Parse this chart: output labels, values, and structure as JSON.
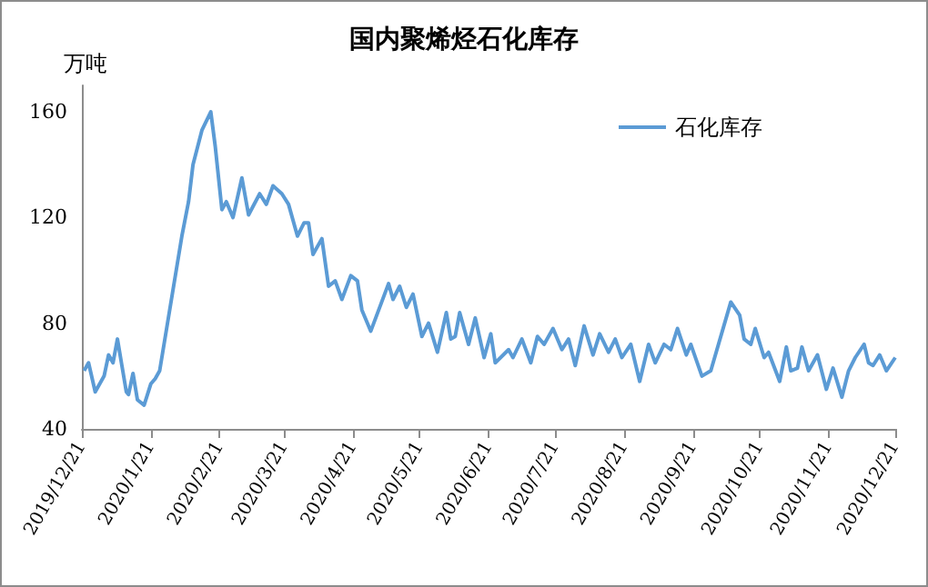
{
  "chart_data": {
    "type": "line",
    "title": "国内聚烯烃石化库存",
    "ylabel": "万吨",
    "x": [
      "2019-12-22",
      "2019-12-24",
      "2019-12-27",
      "2019-12-31",
      "2020-01-02",
      "2020-01-04",
      "2020-01-06",
      "2020-01-08",
      "2020-01-10",
      "2020-01-11",
      "2020-01-13",
      "2020-01-15",
      "2020-01-18",
      "2020-01-21",
      "2020-01-23",
      "2020-01-25",
      "2020-02-04",
      "2020-02-07",
      "2020-02-09",
      "2020-02-13",
      "2020-02-17",
      "2020-02-19",
      "2020-02-22",
      "2020-02-24",
      "2020-02-27",
      "2020-03-02",
      "2020-03-05",
      "2020-03-10",
      "2020-03-13",
      "2020-03-16",
      "2020-03-20",
      "2020-03-23",
      "2020-03-27",
      "2020-03-30",
      "2020-04-01",
      "2020-04-03",
      "2020-04-07",
      "2020-04-10",
      "2020-04-13",
      "2020-04-16",
      "2020-04-20",
      "2020-04-23",
      "2020-04-25",
      "2020-04-29",
      "2020-05-07",
      "2020-05-09",
      "2020-05-12",
      "2020-05-15",
      "2020-05-18",
      "2020-05-22",
      "2020-05-25",
      "2020-05-29",
      "2020-06-02",
      "2020-06-04",
      "2020-06-06",
      "2020-06-08",
      "2020-06-12",
      "2020-06-15",
      "2020-06-19",
      "2020-06-22",
      "2020-06-24",
      "2020-06-30",
      "2020-07-02",
      "2020-07-06",
      "2020-07-10",
      "2020-07-13",
      "2020-07-16",
      "2020-07-20",
      "2020-07-24",
      "2020-07-27",
      "2020-07-30",
      "2020-08-03",
      "2020-08-07",
      "2020-08-10",
      "2020-08-14",
      "2020-08-17",
      "2020-08-20",
      "2020-08-24",
      "2020-08-28",
      "2020-09-01",
      "2020-09-04",
      "2020-09-08",
      "2020-09-11",
      "2020-09-14",
      "2020-09-18",
      "2020-09-20",
      "2020-09-25",
      "2020-09-29",
      "2020-10-08",
      "2020-10-12",
      "2020-10-14",
      "2020-10-17",
      "2020-10-19",
      "2020-10-23",
      "2020-10-25",
      "2020-10-30",
      "2020-11-02",
      "2020-11-04",
      "2020-11-07",
      "2020-11-09",
      "2020-11-12",
      "2020-11-16",
      "2020-11-20",
      "2020-11-23",
      "2020-11-27",
      "2020-11-30",
      "2020-12-03",
      "2020-12-07",
      "2020-12-09",
      "2020-12-11",
      "2020-12-14",
      "2020-12-17",
      "2020-12-21"
    ],
    "series": [
      {
        "name": "石化库存",
        "color": "#5b9bd5",
        "values": [
          62,
          65,
          54,
          60,
          68,
          65,
          74,
          64,
          54,
          53,
          61,
          51,
          49,
          57,
          59,
          62,
          113,
          126,
          140,
          153,
          160,
          147,
          123,
          126,
          120,
          135,
          121,
          129,
          125,
          132,
          129,
          125,
          113,
          118,
          118,
          106,
          112,
          94,
          96,
          89,
          98,
          96,
          85,
          77,
          95,
          89,
          94,
          86,
          91,
          75,
          80,
          69,
          84,
          74,
          75,
          84,
          72,
          82,
          67,
          76,
          65,
          70,
          67,
          74,
          65,
          75,
          72,
          78,
          70,
          74,
          64,
          79,
          68,
          76,
          69,
          74,
          67,
          72,
          58,
          72,
          65,
          72,
          70,
          78,
          68,
          72,
          60,
          62,
          88,
          83,
          74,
          72,
          78,
          67,
          69,
          58,
          71,
          62,
          63,
          71,
          62,
          68,
          55,
          63,
          52,
          62,
          67,
          72,
          65,
          64,
          68,
          62,
          67
        ]
      }
    ],
    "xlim": [
      "2019-12-21",
      "2020-12-21"
    ],
    "xticks": [
      {
        "value": "2019-12-21",
        "label": "2019/12/21"
      },
      {
        "value": "2020-01-21",
        "label": "2020/1/21"
      },
      {
        "value": "2020-02-21",
        "label": "2020/2/21"
      },
      {
        "value": "2020-03-21",
        "label": "2020/3/21"
      },
      {
        "value": "2020-04-21",
        "label": "2020/4/21"
      },
      {
        "value": "2020-05-21",
        "label": "2020/5/21"
      },
      {
        "value": "2020-06-21",
        "label": "2020/6/21"
      },
      {
        "value": "2020-07-21",
        "label": "2020/7/21"
      },
      {
        "value": "2020-08-21",
        "label": "2020/8/21"
      },
      {
        "value": "2020-09-21",
        "label": "2020/9/21"
      },
      {
        "value": "2020-10-21",
        "label": "2020/10/21"
      },
      {
        "value": "2020-11-21",
        "label": "2020/11/21"
      },
      {
        "value": "2020-12-21",
        "label": "2020/12/21"
      }
    ],
    "ylim": [
      40,
      170
    ],
    "yticks": [
      40,
      80,
      120,
      160
    ],
    "legend": "top right",
    "marker": "none"
  }
}
